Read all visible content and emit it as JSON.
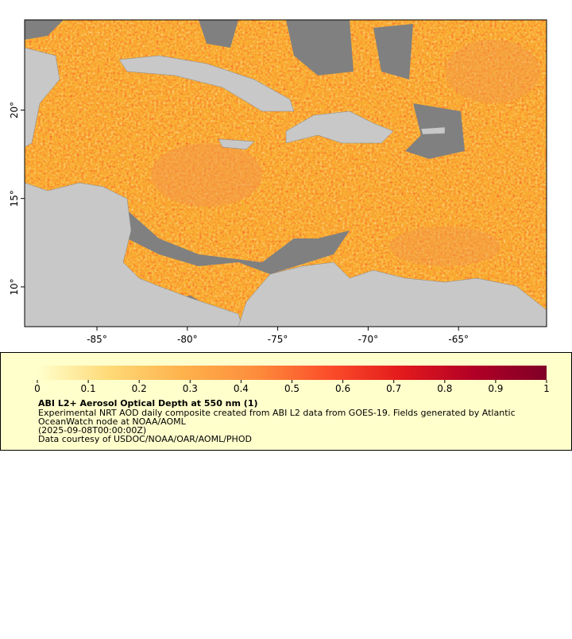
{
  "map": {
    "xlim": [
      -89,
      -60.13
    ],
    "ylim": [
      7.75,
      25.1
    ],
    "xticks": [
      {
        "value": -85,
        "label": "-85°"
      },
      {
        "value": -80,
        "label": "-80°"
      },
      {
        "value": -75,
        "label": "-75°"
      },
      {
        "value": -70,
        "label": "-70°"
      },
      {
        "value": -65,
        "label": "-65°"
      }
    ],
    "yticks": [
      {
        "value": 10,
        "label": "10°"
      },
      {
        "value": 15,
        "label": "15°"
      },
      {
        "value": 20,
        "label": "20°"
      }
    ]
  },
  "legend": {
    "colorbar": {
      "lim": [
        0,
        1
      ],
      "ticks": [
        0,
        0.1,
        0.2,
        0.3,
        0.4,
        0.5,
        0.6,
        0.7,
        0.8,
        0.9,
        1
      ],
      "colors": [
        "#ffffcc",
        "#fed976",
        "#feb24c",
        "#fd8d3c",
        "#fc4e2a",
        "#e31a1c",
        "#b10026",
        "#800026"
      ]
    },
    "title": "ABI L2+ Aerosol Optical Depth at 550 nm (1)",
    "lines": [
      "Experimental NRT AOD daily composite created from ABI L2 data from GOES-19. Fields generated by Atlantic",
      "OceanWatch node at NOAA/AOML",
      "(2025-09-08T00:00:00Z)",
      "Data courtesy of USDOC/NOAA/OAR/AOML/PHOD"
    ]
  }
}
